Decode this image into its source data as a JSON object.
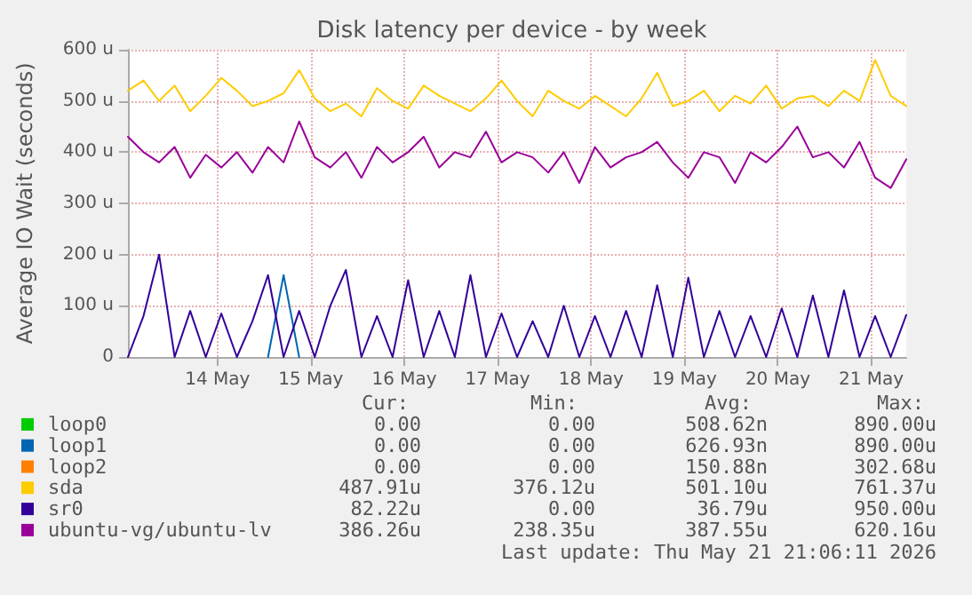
{
  "chart_data": {
    "type": "line",
    "title": "Disk latency per device - by week",
    "ylabel": "Average IO Wait (seconds)",
    "x": [
      "2026-05-13T13:00",
      "2026-05-13T17:00",
      "2026-05-13T21:00",
      "2026-05-14T01:00",
      "2026-05-14T05:00",
      "2026-05-14T09:00",
      "2026-05-14T13:00",
      "2026-05-14T17:00",
      "2026-05-14T21:00",
      "2026-05-15T01:00",
      "2026-05-15T05:00",
      "2026-05-15T09:00",
      "2026-05-15T13:00",
      "2026-05-15T17:00",
      "2026-05-15T21:00",
      "2026-05-16T01:00",
      "2026-05-16T05:00",
      "2026-05-16T09:00",
      "2026-05-16T13:00",
      "2026-05-16T17:00",
      "2026-05-16T21:00",
      "2026-05-17T01:00",
      "2026-05-17T05:00",
      "2026-05-17T09:00",
      "2026-05-17T13:00",
      "2026-05-17T17:00",
      "2026-05-17T21:00",
      "2026-05-18T01:00",
      "2026-05-18T05:00",
      "2026-05-18T09:00",
      "2026-05-18T13:00",
      "2026-05-18T17:00",
      "2026-05-18T21:00",
      "2026-05-19T01:00",
      "2026-05-19T05:00",
      "2026-05-19T09:00",
      "2026-05-19T13:00",
      "2026-05-19T17:00",
      "2026-05-19T21:00",
      "2026-05-20T01:00",
      "2026-05-20T05:00",
      "2026-05-20T09:00",
      "2026-05-20T13:00",
      "2026-05-20T17:00",
      "2026-05-20T21:00",
      "2026-05-21T01:00",
      "2026-05-21T05:00",
      "2026-05-21T09:00",
      "2026-05-21T13:00",
      "2026-05-21T17:00",
      "2026-05-21T21:00"
    ],
    "series": [
      {
        "name": "loop0",
        "color": "#00cc00",
        "values": [
          null,
          null,
          null,
          null,
          null,
          null,
          null,
          null,
          null,
          null,
          null,
          null,
          null,
          null,
          null,
          null,
          null,
          null,
          null,
          null,
          null,
          null,
          null,
          null,
          null,
          null,
          null,
          null,
          null,
          null,
          null,
          null,
          null,
          null,
          null,
          null,
          null,
          null,
          null,
          null,
          null,
          null,
          null,
          null,
          null,
          null,
          null,
          null,
          null,
          null,
          null
        ]
      },
      {
        "name": "loop1",
        "color": "#0066b3",
        "values": [
          null,
          null,
          null,
          null,
          null,
          null,
          null,
          null,
          null,
          0,
          160,
          0,
          null,
          null,
          null,
          null,
          null,
          null,
          null,
          null,
          null,
          null,
          null,
          null,
          null,
          null,
          null,
          null,
          null,
          null,
          null,
          null,
          null,
          null,
          null,
          null,
          null,
          null,
          null,
          null,
          null,
          null,
          null,
          null,
          null,
          null,
          null,
          null,
          null,
          null,
          null
        ]
      },
      {
        "name": "loop2",
        "color": "#ff8000",
        "values": [
          null,
          null,
          null,
          null,
          null,
          null,
          null,
          null,
          null,
          null,
          null,
          null,
          null,
          null,
          null,
          null,
          null,
          null,
          null,
          null,
          null,
          null,
          null,
          null,
          null,
          null,
          null,
          null,
          null,
          null,
          null,
          null,
          null,
          null,
          null,
          null,
          null,
          null,
          null,
          null,
          null,
          null,
          null,
          null,
          null,
          null,
          null,
          null,
          null,
          null,
          null
        ]
      },
      {
        "name": "sda",
        "color": "#ffcc00",
        "values": [
          520,
          540,
          500,
          530,
          480,
          510,
          545,
          520,
          490,
          500,
          515,
          560,
          505,
          480,
          495,
          470,
          525,
          500,
          485,
          530,
          510,
          495,
          480,
          505,
          540,
          500,
          470,
          520,
          500,
          485,
          510,
          490,
          470,
          505,
          555,
          490,
          500,
          520,
          480,
          510,
          495,
          530,
          485,
          505,
          510,
          490,
          520,
          500,
          580,
          510,
          490
        ]
      },
      {
        "name": "sr0",
        "color": "#330099",
        "values": [
          0,
          80,
          200,
          0,
          90,
          0,
          85,
          0,
          70,
          160,
          0,
          90,
          0,
          100,
          170,
          0,
          80,
          0,
          150,
          0,
          90,
          0,
          160,
          0,
          85,
          0,
          70,
          0,
          100,
          0,
          80,
          0,
          90,
          0,
          140,
          0,
          155,
          0,
          90,
          0,
          80,
          0,
          95,
          0,
          120,
          0,
          130,
          0,
          80,
          0,
          82
        ]
      },
      {
        "name": "ubuntu-vg/ubuntu-lv",
        "color": "#990099",
        "values": [
          430,
          400,
          380,
          410,
          350,
          395,
          370,
          400,
          360,
          410,
          380,
          460,
          390,
          370,
          400,
          350,
          410,
          380,
          400,
          430,
          370,
          400,
          390,
          440,
          380,
          400,
          390,
          360,
          400,
          340,
          410,
          370,
          390,
          400,
          420,
          380,
          350,
          400,
          390,
          340,
          400,
          380,
          410,
          450,
          390,
          400,
          370,
          420,
          350,
          330,
          386
        ]
      }
    ],
    "xlim": [
      "2026-05-13T13:00",
      "2026-05-21T21:00"
    ],
    "xticks": [
      {
        "value": "2026-05-14T12:00",
        "label": "14 May"
      },
      {
        "value": "2026-05-15T12:00",
        "label": "15 May"
      },
      {
        "value": "2026-05-16T12:00",
        "label": "16 May"
      },
      {
        "value": "2026-05-17T12:00",
        "label": "17 May"
      },
      {
        "value": "2026-05-18T12:00",
        "label": "18 May"
      },
      {
        "value": "2026-05-19T12:00",
        "label": "19 May"
      },
      {
        "value": "2026-05-20T12:00",
        "label": "20 May"
      },
      {
        "value": "2026-05-21T12:00",
        "label": "21 May"
      }
    ],
    "ylim": [
      0,
      600
    ],
    "yticks": [
      0,
      {
        "value": 100,
        "label": "100 u"
      },
      {
        "value": 200,
        "label": "200 u"
      },
      {
        "value": 300,
        "label": "300 u"
      },
      {
        "value": 400,
        "label": "400 u"
      },
      {
        "value": 500,
        "label": "500 u"
      },
      {
        "value": 600,
        "label": "600 u"
      }
    ],
    "grid": true,
    "legend": "bottom left",
    "marker": "none",
    "line_style": "solid",
    "annotations": [
      "Cur:",
      "Min:",
      "Avg:",
      "Max:",
      "0.00",
      "0.00",
      "508.62n",
      "890.00u",
      "0.00",
      "0.00",
      "626.93n",
      "890.00u",
      "0.00",
      "0.00",
      "150.88n",
      "302.68u",
      "487.91u",
      "376.12u",
      "501.10u",
      "761.37u",
      "82.22u",
      "0.00",
      "36.79u",
      "950.00u",
      "386.26u",
      "238.35u",
      "387.55u",
      "620.16u",
      "Last update: Thu May 21 21:06:11 2026"
    ]
  }
}
